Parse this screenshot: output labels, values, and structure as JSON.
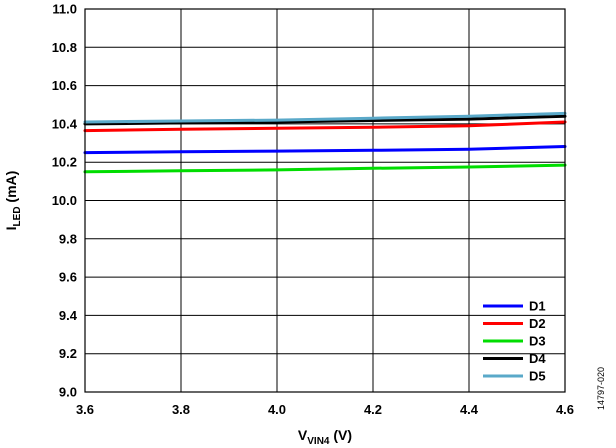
{
  "chart_data": {
    "type": "line",
    "xlabel": {
      "main": "V",
      "sub": "VIN4",
      "unit": " (V)"
    },
    "ylabel": {
      "main": "I",
      "sub": "LED",
      "unit": " (mA)"
    },
    "xlim": [
      3.6,
      4.6
    ],
    "ylim": [
      9.0,
      11.0
    ],
    "x_ticks": [
      "3.6",
      "3.8",
      "4.0",
      "4.2",
      "4.4",
      "4.6"
    ],
    "y_ticks": [
      "9.0",
      "9.2",
      "9.4",
      "9.6",
      "9.8",
      "10.0",
      "10.2",
      "10.4",
      "10.6",
      "10.8",
      "11.0"
    ],
    "grid": true,
    "legend_position": "bottom-right",
    "x": [
      3.6,
      3.8,
      4.0,
      4.2,
      4.4,
      4.6
    ],
    "series": [
      {
        "name": "D1",
        "color": "#0000ff",
        "values": [
          10.25,
          10.255,
          10.258,
          10.262,
          10.268,
          10.282
        ]
      },
      {
        "name": "D2",
        "color": "#ff0000",
        "values": [
          10.365,
          10.372,
          10.377,
          10.382,
          10.39,
          10.41
        ]
      },
      {
        "name": "D3",
        "color": "#00dd00",
        "values": [
          10.15,
          10.155,
          10.16,
          10.168,
          10.175,
          10.185
        ]
      },
      {
        "name": "D4",
        "color": "#000000",
        "values": [
          10.4,
          10.405,
          10.41,
          10.418,
          10.425,
          10.44
        ]
      },
      {
        "name": "D5",
        "color": "#5aa9c9",
        "values": [
          10.41,
          10.415,
          10.42,
          10.43,
          10.44,
          10.455
        ]
      }
    ]
  },
  "figure_id": "14797-020"
}
